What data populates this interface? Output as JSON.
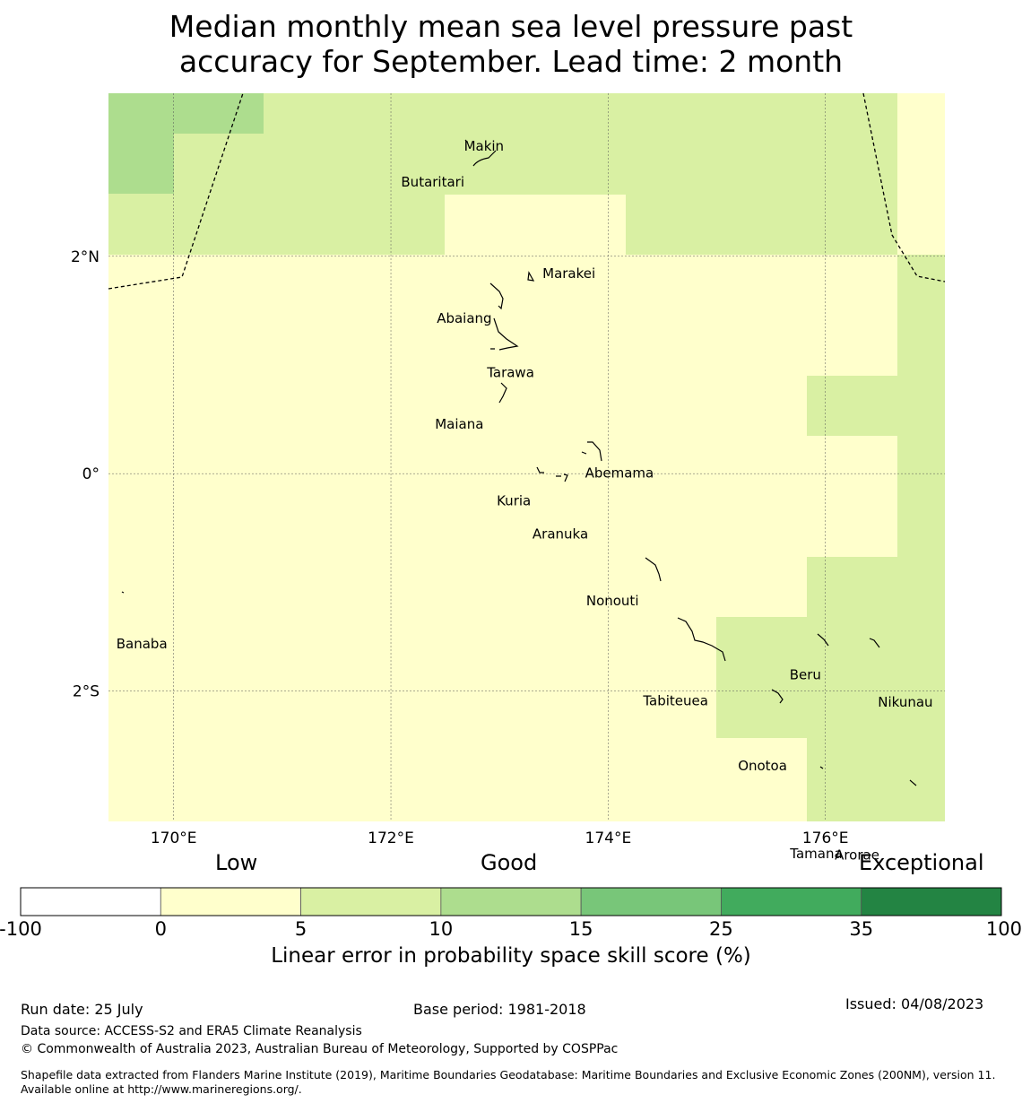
{
  "title_line1": "Median monthly mean sea level pressure past",
  "title_line2": "accuracy for September. Lead time: 2 month",
  "map": {
    "lon_range": [
      169.4,
      177.1
    ],
    "lat_range": [
      -3.2,
      3.5
    ],
    "lon_ticks": [
      {
        "value": 170,
        "label": "170°E"
      },
      {
        "value": 172,
        "label": "172°E"
      },
      {
        "value": 174,
        "label": "174°E"
      },
      {
        "value": 176,
        "label": "176°E"
      }
    ],
    "lat_ticks": [
      {
        "value": 2,
        "label": "2°N"
      },
      {
        "value": 0,
        "label": "0°"
      },
      {
        "value": -2,
        "label": "2°S"
      }
    ],
    "islands": [
      {
        "name": "Makin",
        "lon": 172.97,
        "lat": 3.12
      },
      {
        "name": "Butaritari",
        "lon": 172.82,
        "lat": 3.07
      },
      {
        "name": "Marakei",
        "lon": 173.28,
        "lat": 2.0
      },
      {
        "name": "Abaiang",
        "lon": 173.0,
        "lat": 1.85
      },
      {
        "name": "Tarawa",
        "lon": 173.0,
        "lat": 1.4
      },
      {
        "name": "Maiana",
        "lon": 173.0,
        "lat": 0.95
      },
      {
        "name": "Abemama",
        "lon": 173.87,
        "lat": 0.4
      },
      {
        "name": "Kuria",
        "lon": 173.42,
        "lat": 0.22
      },
      {
        "name": "Aranuka",
        "lon": 173.6,
        "lat": 0.17
      },
      {
        "name": "Nonouti",
        "lon": 174.4,
        "lat": -0.65
      },
      {
        "name": "Banaba",
        "lon": 169.53,
        "lat": -0.88
      },
      {
        "name": "Tabiteuea",
        "lon": 174.85,
        "lat": -1.3
      },
      {
        "name": "Beru",
        "lon": 176.0,
        "lat": -1.33
      },
      {
        "name": "Nikunau",
        "lon": 176.45,
        "lat": -1.37
      },
      {
        "name": "Onotoa",
        "lon": 175.55,
        "lat": -1.83
      },
      {
        "name": "Tamana",
        "lon": 175.98,
        "lat": -2.5
      },
      {
        "name": "Arorae",
        "lon": 176.82,
        "lat": -2.65
      }
    ]
  },
  "legend": {
    "categories": [
      "Low",
      "Good",
      "Exceptional"
    ],
    "ticks": [
      "-100",
      "0",
      "5",
      "10",
      "15",
      "25",
      "35",
      "100"
    ],
    "colors": [
      "#ffffff",
      "#ffffcc",
      "#d9f0a3",
      "#addd8e",
      "#78c679",
      "#41ab5d",
      "#238443"
    ],
    "label": "Linear error in probability space skill score (%)"
  },
  "footer": {
    "run_date": "Run date: 25 July",
    "base_period": "Base period: 1981-2018",
    "issued": "Issued: 04/08/2023",
    "data_source": "Data source: ACCESS-S2 and ERA5 Climate Reanalysis",
    "copyright": "© Commonwealth of Australia 2023, Australian Bureau of Meteorology, Supported by COSPPac",
    "shapefile": "Shapefile data extracted from Flanders Marine Institute (2019), Maritime Boundaries Geodatabase: Maritime Boundaries and Exclusive Economic Zones (200NM), version 11. Available online at http://www.marineregions.org/."
  }
}
